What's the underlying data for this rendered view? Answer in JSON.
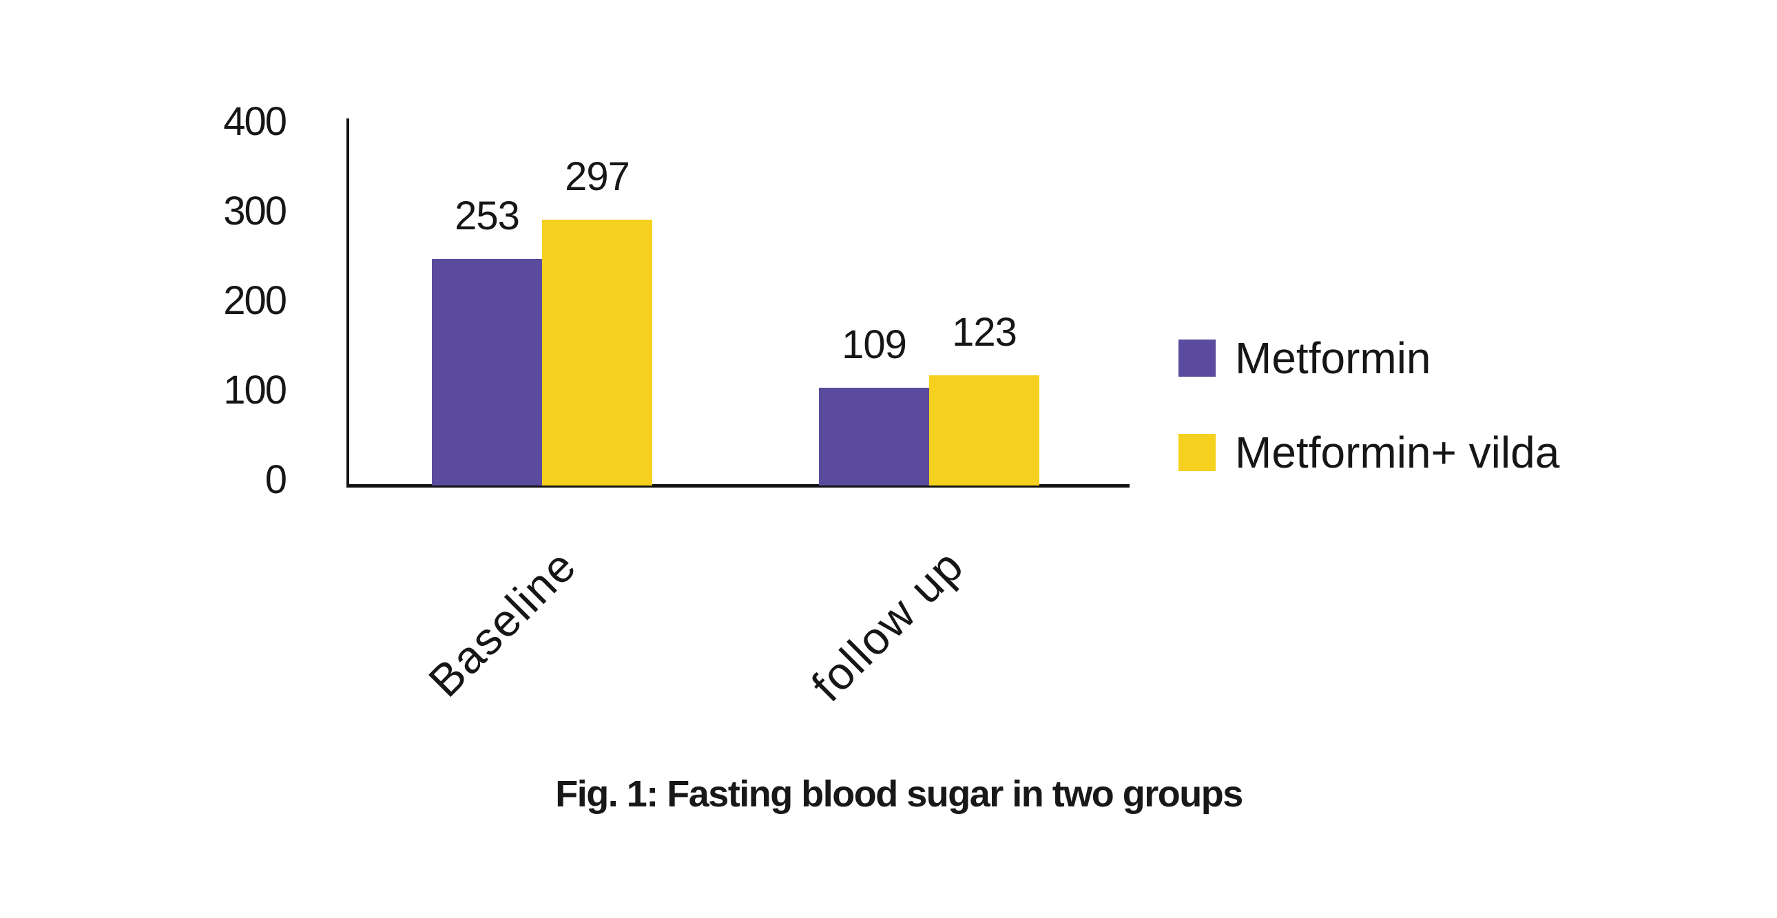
{
  "chart_data": {
    "type": "bar",
    "caption": "Fig. 1: Fasting blood sugar in two groups",
    "categories": [
      "Baseline",
      "follow up"
    ],
    "series": [
      {
        "name": "Metformin",
        "color": "#5a4b9e",
        "values": [
          253,
          109
        ]
      },
      {
        "name": "Metformin+ vilda",
        "color": "#f6d01f",
        "values": [
          297,
          123
        ]
      }
    ],
    "yticks": [
      400,
      300,
      200,
      100,
      0
    ],
    "ylim": [
      0,
      400
    ],
    "xlabel": "",
    "ylabel": "",
    "grid": false,
    "data_labels": true,
    "legend_position": "right",
    "axis_color": "#121212",
    "text_color": "#161616",
    "background": "#ffffff"
  }
}
